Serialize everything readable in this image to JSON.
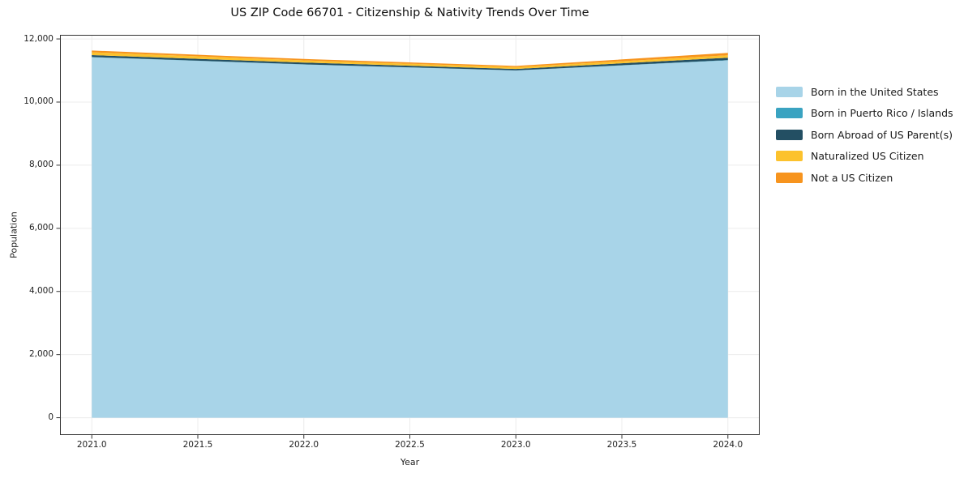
{
  "title": "US ZIP Code 66701 - Citizenship & Nativity Trends Over Time",
  "chart_data": {
    "type": "area",
    "stacked": true,
    "title": "US ZIP Code 66701 - Citizenship & Nativity Trends Over Time",
    "xlabel": "Year",
    "ylabel": "Population",
    "x": [
      2021,
      2022,
      2023,
      2024
    ],
    "series": [
      {
        "name": "Born in the United States",
        "color": "#a8d4e8",
        "values": [
          11420,
          11190,
          11000,
          11320
        ]
      },
      {
        "name": "Born in Puerto Rico / Islands",
        "color": "#3aa3c1",
        "values": [
          8,
          6,
          5,
          10
        ]
      },
      {
        "name": "Born Abroad of US Parent(s)",
        "color": "#234f63",
        "values": [
          60,
          55,
          45,
          75
        ]
      },
      {
        "name": "Naturalized US Citizen",
        "color": "#fcc22d",
        "values": [
          90,
          70,
          55,
          78
        ]
      },
      {
        "name": "Not a US Citizen",
        "color": "#f7941e",
        "values": [
          55,
          45,
          40,
          75
        ]
      }
    ],
    "xlim": [
      2020.85,
      2024.15
    ],
    "ylim": [
      -550,
      12130
    ],
    "xticks": {
      "values": [
        2021.0,
        2021.5,
        2022.0,
        2022.5,
        2023.0,
        2023.5,
        2024.0
      ],
      "labels": [
        "2021.0",
        "2021.5",
        "2022.0",
        "2022.5",
        "2023.0",
        "2023.5",
        "2024.0"
      ]
    },
    "yticks": {
      "values": [
        0,
        2000,
        4000,
        6000,
        8000,
        10000,
        12000
      ],
      "labels": [
        "0",
        "2,000",
        "4,000",
        "6,000",
        "8,000",
        "10,000",
        "12,000"
      ]
    },
    "grid": true,
    "legend_position": "right-outside",
    "colors": {
      "grid": "#ececec",
      "frame": "#333333",
      "tick": "#333333"
    }
  }
}
